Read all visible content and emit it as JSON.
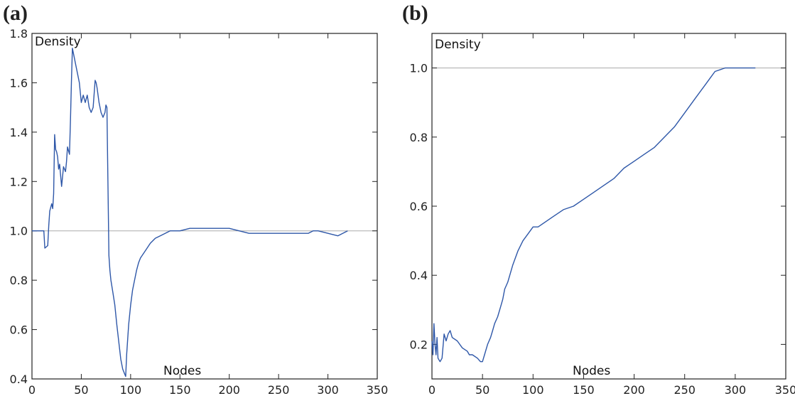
{
  "chart_data": [
    {
      "panel_label": "(a)",
      "type": "line",
      "xlabel": "Nodes",
      "ylabel": "Density",
      "xlim": [
        0,
        350
      ],
      "ylim": [
        0.4,
        1.8
      ],
      "xticks": [
        "0",
        "50",
        "100",
        "150",
        "200",
        "250",
        "300",
        "350"
      ],
      "yticks": [
        "0.4",
        "0.6",
        "0.8",
        "1.0",
        "1.2",
        "1.4",
        "1.6",
        "1.8"
      ],
      "reference_line_y": 1.0,
      "grid": false,
      "series_color": "#2e57a8",
      "series": [
        {
          "x": [
            0,
            12,
            13,
            16,
            17,
            18,
            20,
            21,
            22,
            23,
            24,
            25,
            26,
            27,
            28,
            30,
            32,
            34,
            35,
            36,
            38,
            39,
            40,
            41,
            42,
            43,
            44,
            45,
            46,
            48,
            50,
            52,
            54,
            56,
            58,
            60,
            62,
            64,
            65,
            66,
            68,
            70,
            72,
            74,
            75,
            76,
            77,
            78,
            79,
            80,
            82,
            84,
            86,
            88,
            90,
            92,
            94,
            95,
            96,
            98,
            100,
            102,
            104,
            106,
            108,
            110,
            115,
            120,
            125,
            130,
            135,
            140,
            145,
            150,
            160,
            170,
            180,
            190,
            200,
            210,
            220,
            230,
            240,
            250,
            260,
            270,
            280,
            285,
            290,
            300,
            310,
            315,
            320
          ],
          "y": [
            1.0,
            1.0,
            0.93,
            0.94,
            1.02,
            1.08,
            1.11,
            1.09,
            1.15,
            1.39,
            1.33,
            1.32,
            1.3,
            1.25,
            1.27,
            1.18,
            1.26,
            1.24,
            1.28,
            1.34,
            1.31,
            1.45,
            1.6,
            1.74,
            1.72,
            1.7,
            1.68,
            1.66,
            1.64,
            1.6,
            1.52,
            1.55,
            1.52,
            1.55,
            1.5,
            1.48,
            1.5,
            1.61,
            1.6,
            1.58,
            1.52,
            1.48,
            1.46,
            1.48,
            1.51,
            1.5,
            1.2,
            0.9,
            0.84,
            0.8,
            0.75,
            0.7,
            0.62,
            0.55,
            0.48,
            0.44,
            0.42,
            0.41,
            0.5,
            0.62,
            0.7,
            0.76,
            0.8,
            0.84,
            0.87,
            0.89,
            0.92,
            0.95,
            0.97,
            0.98,
            0.99,
            1.0,
            1.0,
            1.0,
            1.01,
            1.01,
            1.01,
            1.01,
            1.01,
            1.0,
            0.99,
            0.99,
            0.99,
            0.99,
            0.99,
            0.99,
            0.99,
            1.0,
            1.0,
            0.99,
            0.98,
            0.99,
            1.0
          ]
        }
      ]
    },
    {
      "panel_label": "(b)",
      "type": "line",
      "xlabel": "Nodes",
      "ylabel": "Density",
      "xlim": [
        0,
        350
      ],
      "ylim": [
        0.1,
        1.1
      ],
      "xticks": [
        "0",
        "50",
        "100",
        "150",
        "200",
        "250",
        "300",
        "350"
      ],
      "yticks": [
        "0.2",
        "0.4",
        "0.6",
        "0.8",
        "1.0"
      ],
      "yticks_values": [
        0.2,
        0.4,
        0.6,
        0.8,
        1.0
      ],
      "reference_line_y": 1.0,
      "grid": false,
      "series_color": "#2e57a8",
      "series": [
        {
          "x": [
            0,
            1,
            2,
            3,
            4,
            5,
            6,
            8,
            10,
            12,
            14,
            16,
            18,
            20,
            25,
            30,
            35,
            37,
            40,
            45,
            48,
            50,
            52,
            55,
            58,
            60,
            62,
            65,
            68,
            70,
            72,
            75,
            80,
            85,
            90,
            95,
            100,
            105,
            110,
            115,
            120,
            130,
            140,
            150,
            160,
            170,
            180,
            190,
            200,
            210,
            220,
            230,
            240,
            250,
            260,
            270,
            275,
            280,
            290,
            300,
            310,
            320
          ],
          "y": [
            0.21,
            0.17,
            0.26,
            0.2,
            0.17,
            0.22,
            0.16,
            0.15,
            0.16,
            0.23,
            0.21,
            0.23,
            0.24,
            0.22,
            0.21,
            0.19,
            0.18,
            0.17,
            0.17,
            0.16,
            0.15,
            0.15,
            0.17,
            0.2,
            0.22,
            0.24,
            0.26,
            0.28,
            0.31,
            0.33,
            0.36,
            0.38,
            0.43,
            0.47,
            0.5,
            0.52,
            0.54,
            0.54,
            0.55,
            0.56,
            0.57,
            0.59,
            0.6,
            0.62,
            0.64,
            0.66,
            0.68,
            0.71,
            0.73,
            0.75,
            0.77,
            0.8,
            0.83,
            0.87,
            0.91,
            0.95,
            0.97,
            0.99,
            1.0,
            1.0,
            1.0,
            1.0
          ]
        }
      ]
    }
  ]
}
